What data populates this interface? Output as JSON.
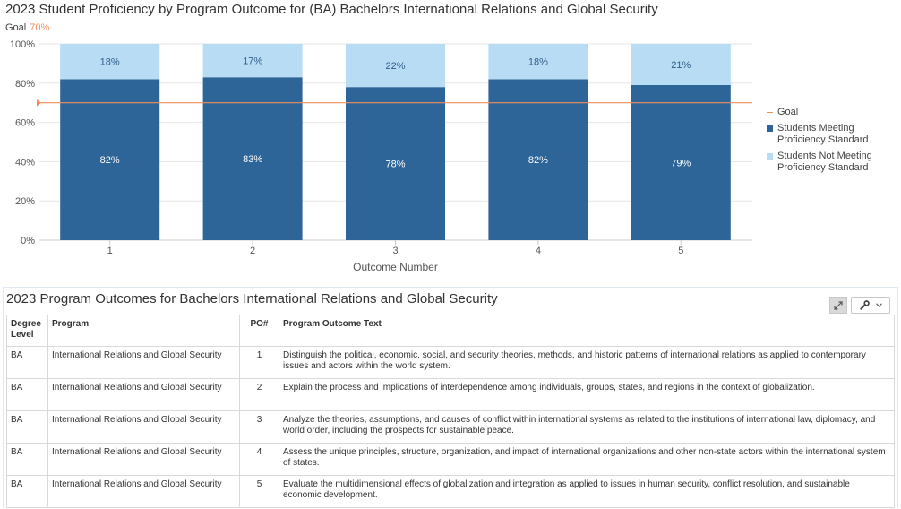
{
  "chart_data": {
    "type": "bar",
    "stacked": true,
    "title": "2023 Student Proficiency by Program Outcome for (BA) Bachelors International Relations and Global Security",
    "goal_label": "Goal",
    "goal_value_label": "70%",
    "goal_value": 70,
    "xlabel": "Outcome Number",
    "ylabel": "",
    "ylim": [
      0,
      100
    ],
    "y_ticks": [
      "0%",
      "20%",
      "40%",
      "60%",
      "80%",
      "100%"
    ],
    "categories": [
      "1",
      "2",
      "3",
      "4",
      "5"
    ],
    "series": [
      {
        "name": "Students Meeting Proficiency Standard",
        "values": [
          82,
          83,
          78,
          82,
          79
        ],
        "labels": [
          "82%",
          "83%",
          "78%",
          "82%",
          "79%"
        ],
        "color": "#2e6598"
      },
      {
        "name": "Students Not Meeting Proficiency Standard",
        "values": [
          18,
          17,
          22,
          18,
          21
        ],
        "labels": [
          "18%",
          "17%",
          "22%",
          "18%",
          "21%"
        ],
        "color": "#b8dcf4"
      }
    ],
    "legend": {
      "position": "right",
      "items": [
        {
          "label": "Goal",
          "color": "#f08e5d",
          "shape": "line"
        },
        {
          "label": "Students Meeting Proficiency Standard",
          "color": "#2e6598",
          "shape": "square"
        },
        {
          "label": "Students Not Meeting Proficiency Standard",
          "color": "#b8dcf4",
          "shape": "square"
        }
      ]
    },
    "grid": true,
    "goal_color": "#f08e5d",
    "axis_line_color": "#cccccc"
  },
  "table": {
    "title": "2023 Program Outcomes for Bachelors International Relations and Global Security",
    "expand_icon": "expand-arrows-icon",
    "tools_icon": "wrench-icon",
    "dropdown_icon": "chevron-down-icon",
    "headers": [
      "Degree Level",
      "Program",
      "PO#",
      "Program Outcome Text"
    ],
    "rows": [
      [
        "BA",
        "International Relations and Global Security",
        "1",
        "Distinguish the political, economic, social, and security theories, methods, and historic patterns of international relations as applied to contemporary issues and actors within the world system."
      ],
      [
        "BA",
        "International Relations and Global Security",
        "2",
        "Explain the process and implications of interdependence among individuals, groups, states, and regions in the context of globalization."
      ],
      [
        "BA",
        "International Relations and Global Security",
        "3",
        "Analyze the theories, assumptions, and causes of conflict within international systems as related to the institutions of international law, diplomacy, and world order, including the prospects for sustainable peace."
      ],
      [
        "BA",
        "International Relations and Global Security",
        "4",
        "Assess the unique principles, structure, organization, and impact of international organizations and other non-state actors within the international system of states."
      ],
      [
        "BA",
        "International Relations and Global Security",
        "5",
        "Evaluate the multidimensional effects of globalization and integration as applied to issues in human security, conflict resolution, and sustainable economic development."
      ]
    ]
  }
}
